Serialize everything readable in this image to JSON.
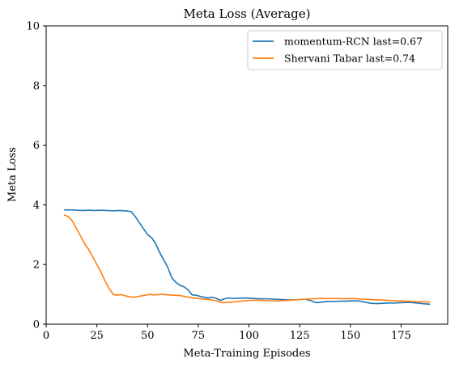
{
  "chart_data": {
    "type": "line",
    "title": "Meta Loss (Average)",
    "xlabel": "Meta-Training Episodes",
    "ylabel": "Meta Loss",
    "xlim": [
      0,
      198
    ],
    "ylim": [
      0,
      10
    ],
    "xticks": [
      0,
      25,
      50,
      75,
      100,
      125,
      150,
      175
    ],
    "yticks": [
      0,
      2,
      4,
      6,
      8,
      10
    ],
    "grid": false,
    "legend_position": "top-right",
    "series": [
      {
        "name": "momentum-RCN last=0.67",
        "color": "#1f77b4",
        "points": [
          [
            9,
            3.83
          ],
          [
            12,
            3.83
          ],
          [
            15,
            3.82
          ],
          [
            18,
            3.81
          ],
          [
            21,
            3.82
          ],
          [
            24,
            3.81
          ],
          [
            27,
            3.82
          ],
          [
            30,
            3.81
          ],
          [
            33,
            3.8
          ],
          [
            36,
            3.81
          ],
          [
            39,
            3.8
          ],
          [
            42,
            3.77
          ],
          [
            44,
            3.6
          ],
          [
            46,
            3.4
          ],
          [
            48,
            3.2
          ],
          [
            50,
            3.0
          ],
          [
            52,
            2.9
          ],
          [
            54,
            2.7
          ],
          [
            56,
            2.4
          ],
          [
            58,
            2.15
          ],
          [
            60,
            1.9
          ],
          [
            62,
            1.55
          ],
          [
            64,
            1.4
          ],
          [
            66,
            1.3
          ],
          [
            68,
            1.25
          ],
          [
            70,
            1.15
          ],
          [
            72,
            0.98
          ],
          [
            74,
            0.97
          ],
          [
            76,
            0.93
          ],
          [
            78,
            0.9
          ],
          [
            80,
            0.88
          ],
          [
            82,
            0.9
          ],
          [
            84,
            0.86
          ],
          [
            86,
            0.8
          ],
          [
            88,
            0.85
          ],
          [
            90,
            0.88
          ],
          [
            92,
            0.86
          ],
          [
            95,
            0.87
          ],
          [
            98,
            0.88
          ],
          [
            100,
            0.87
          ],
          [
            103,
            0.86
          ],
          [
            106,
            0.85
          ],
          [
            109,
            0.85
          ],
          [
            112,
            0.84
          ],
          [
            115,
            0.83
          ],
          [
            118,
            0.82
          ],
          [
            121,
            0.81
          ],
          [
            124,
            0.82
          ],
          [
            127,
            0.84
          ],
          [
            130,
            0.8
          ],
          [
            133,
            0.72
          ],
          [
            136,
            0.74
          ],
          [
            139,
            0.76
          ],
          [
            142,
            0.76
          ],
          [
            145,
            0.77
          ],
          [
            148,
            0.77
          ],
          [
            151,
            0.78
          ],
          [
            154,
            0.78
          ],
          [
            157,
            0.74
          ],
          [
            160,
            0.7
          ],
          [
            163,
            0.69
          ],
          [
            166,
            0.7
          ],
          [
            169,
            0.71
          ],
          [
            172,
            0.71
          ],
          [
            175,
            0.72
          ],
          [
            178,
            0.73
          ],
          [
            181,
            0.72
          ],
          [
            184,
            0.7
          ],
          [
            187,
            0.68
          ],
          [
            189,
            0.67
          ]
        ]
      },
      {
        "name": "Shervani Tabar last=0.74",
        "color": "#ff7f0e",
        "points": [
          [
            9,
            3.66
          ],
          [
            11,
            3.6
          ],
          [
            13,
            3.45
          ],
          [
            15,
            3.2
          ],
          [
            17,
            2.95
          ],
          [
            19,
            2.7
          ],
          [
            21,
            2.5
          ],
          [
            23,
            2.25
          ],
          [
            25,
            2.0
          ],
          [
            27,
            1.75
          ],
          [
            29,
            1.45
          ],
          [
            31,
            1.2
          ],
          [
            33,
            1.0
          ],
          [
            35,
            0.97
          ],
          [
            37,
            0.99
          ],
          [
            39,
            0.95
          ],
          [
            41,
            0.92
          ],
          [
            43,
            0.9
          ],
          [
            45,
            0.92
          ],
          [
            47,
            0.95
          ],
          [
            49,
            0.97
          ],
          [
            51,
            1.0
          ],
          [
            53,
            0.98
          ],
          [
            55,
            0.99
          ],
          [
            57,
            1.0
          ],
          [
            60,
            0.98
          ],
          [
            63,
            0.97
          ],
          [
            66,
            0.96
          ],
          [
            69,
            0.92
          ],
          [
            72,
            0.88
          ],
          [
            75,
            0.86
          ],
          [
            78,
            0.84
          ],
          [
            81,
            0.82
          ],
          [
            84,
            0.78
          ],
          [
            87,
            0.72
          ],
          [
            90,
            0.73
          ],
          [
            93,
            0.75
          ],
          [
            96,
            0.77
          ],
          [
            99,
            0.79
          ],
          [
            102,
            0.8
          ],
          [
            105,
            0.8
          ],
          [
            108,
            0.79
          ],
          [
            111,
            0.78
          ],
          [
            114,
            0.78
          ],
          [
            117,
            0.79
          ],
          [
            120,
            0.8
          ],
          [
            123,
            0.82
          ],
          [
            126,
            0.83
          ],
          [
            129,
            0.84
          ],
          [
            132,
            0.85
          ],
          [
            135,
            0.86
          ],
          [
            138,
            0.86
          ],
          [
            141,
            0.86
          ],
          [
            144,
            0.86
          ],
          [
            147,
            0.85
          ],
          [
            150,
            0.86
          ],
          [
            153,
            0.85
          ],
          [
            156,
            0.84
          ],
          [
            159,
            0.83
          ],
          [
            162,
            0.82
          ],
          [
            165,
            0.81
          ],
          [
            168,
            0.8
          ],
          [
            171,
            0.79
          ],
          [
            174,
            0.78
          ],
          [
            177,
            0.77
          ],
          [
            180,
            0.76
          ],
          [
            183,
            0.75
          ],
          [
            186,
            0.75
          ],
          [
            189,
            0.74
          ]
        ]
      }
    ]
  }
}
